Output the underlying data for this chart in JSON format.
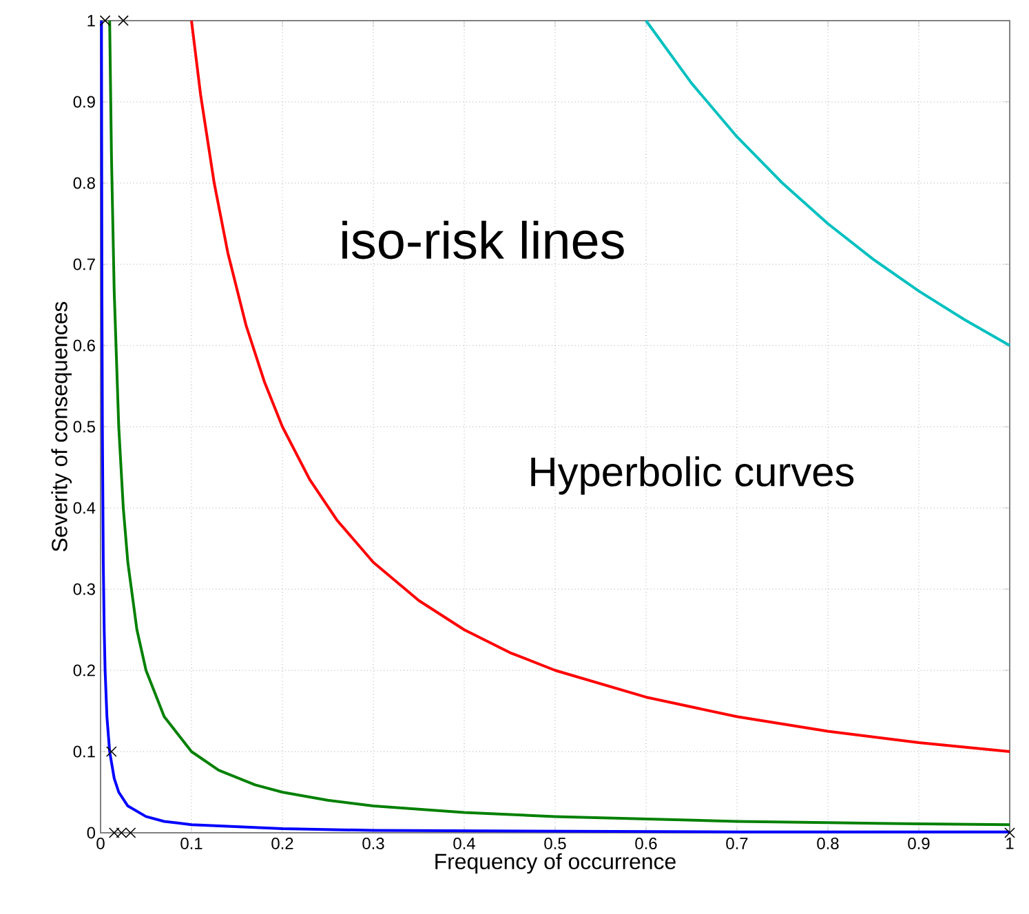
{
  "chart_data": {
    "type": "line",
    "xlabel": "Frequency of occurrence",
    "ylabel": "Severity of consequences",
    "annotations": [
      "iso-risk lines",
      "Hyperbolic curves"
    ],
    "xlim": [
      0,
      1
    ],
    "ylim": [
      0,
      1
    ],
    "xticks": [
      0,
      0.1,
      0.2,
      0.3,
      0.4,
      0.5,
      0.6,
      0.7,
      0.8,
      0.9,
      1
    ],
    "yticks": [
      0,
      0.1,
      0.2,
      0.3,
      0.4,
      0.5,
      0.6,
      0.7,
      0.8,
      0.9,
      1
    ],
    "grid": true,
    "series": [
      {
        "color": "#0000ff",
        "x": [
          0.001,
          0.0015,
          0.002,
          0.003,
          0.004,
          0.005,
          0.007,
          0.01,
          0.015,
          0.02,
          0.03,
          0.05,
          0.07,
          0.1,
          0.2,
          0.3,
          0.5,
          0.7,
          1
        ],
        "values": [
          1,
          0.667,
          0.5,
          0.333,
          0.25,
          0.2,
          0.143,
          0.1,
          0.067,
          0.05,
          0.033,
          0.02,
          0.014,
          0.01,
          0.005,
          0.003,
          0.002,
          0.001,
          0.001
        ]
      },
      {
        "color": "#008000",
        "x": [
          0.01,
          0.012,
          0.015,
          0.02,
          0.025,
          0.03,
          0.04,
          0.05,
          0.07,
          0.1,
          0.13,
          0.17,
          0.2,
          0.25,
          0.3,
          0.4,
          0.5,
          0.6,
          0.7,
          0.8,
          0.9,
          1
        ],
        "values": [
          1,
          0.833,
          0.667,
          0.5,
          0.4,
          0.333,
          0.25,
          0.2,
          0.143,
          0.1,
          0.077,
          0.059,
          0.05,
          0.04,
          0.033,
          0.025,
          0.02,
          0.017,
          0.014,
          0.0125,
          0.011,
          0.01
        ]
      },
      {
        "color": "#ff0000",
        "x": [
          0.1,
          0.11,
          0.125,
          0.14,
          0.16,
          0.18,
          0.2,
          0.23,
          0.26,
          0.3,
          0.35,
          0.4,
          0.45,
          0.5,
          0.6,
          0.7,
          0.8,
          0.9,
          1
        ],
        "values": [
          1,
          0.909,
          0.8,
          0.714,
          0.625,
          0.556,
          0.5,
          0.435,
          0.385,
          0.333,
          0.286,
          0.25,
          0.222,
          0.2,
          0.167,
          0.143,
          0.125,
          0.111,
          0.1
        ]
      },
      {
        "color": "#00c0c0",
        "x": [
          0.6,
          0.65,
          0.7,
          0.75,
          0.8,
          0.85,
          0.9,
          0.95,
          1
        ],
        "values": [
          1,
          0.923,
          0.857,
          0.8,
          0.75,
          0.706,
          0.667,
          0.632,
          0.6
        ]
      },
      {
        "type": "scatter",
        "marker": "cross",
        "color": "#000000",
        "x": [
          0.005,
          0.025,
          0.012,
          0.015,
          0.023,
          0.033,
          1
        ],
        "values": [
          1,
          1,
          0.1,
          0,
          0,
          0,
          0
        ]
      }
    ]
  }
}
